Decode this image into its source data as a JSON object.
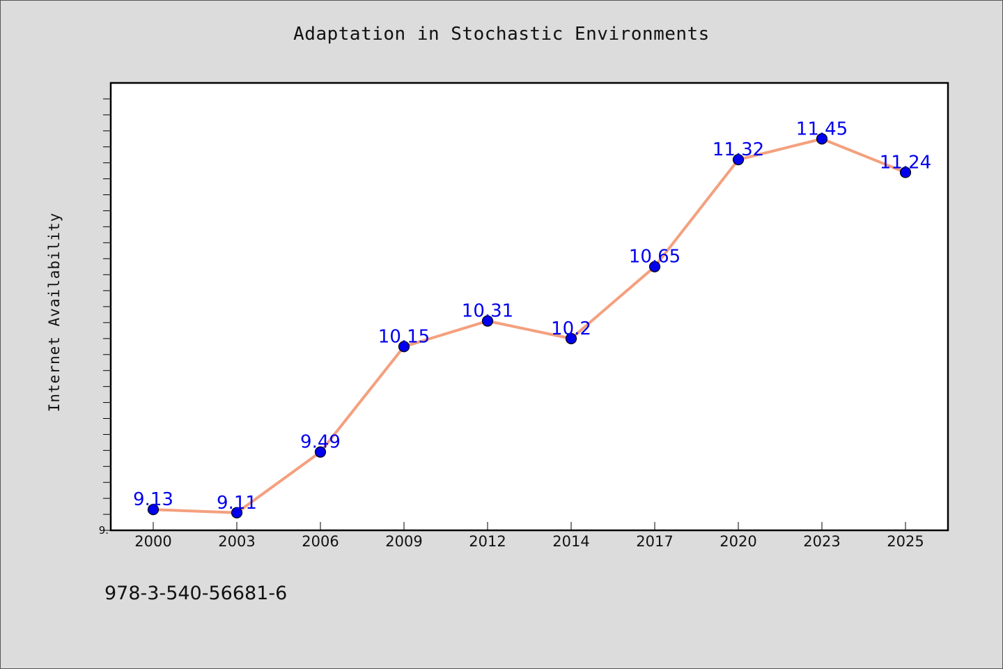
{
  "chart_data": {
    "type": "line",
    "title": "Adaptation in Stochastic Environments",
    "xlabel": "",
    "ylabel": "Internet Availability",
    "x": [
      "2000",
      "2003",
      "2006",
      "2009",
      "2012",
      "2014",
      "2017",
      "2020",
      "2023",
      "2025"
    ],
    "series": [
      {
        "values": [
          9.13,
          9.11,
          9.49,
          10.15,
          10.31,
          10.2,
          10.65,
          11.32,
          11.45,
          11.24
        ],
        "labels": [
          "9.13",
          "9.11",
          "9.49",
          "10.15",
          "10.31",
          "10.2",
          "10.65",
          "11.32",
          "11.45",
          "11.24"
        ]
      }
    ],
    "y_tick_label": "9.",
    "ylim": [
      9.0,
      11.8
    ],
    "grid": false,
    "line_color": "#f4a07e",
    "marker_color": "#0000ee",
    "label_color": "#0000ee"
  },
  "footer": {
    "isbn": "978-3-540-56681-6"
  }
}
